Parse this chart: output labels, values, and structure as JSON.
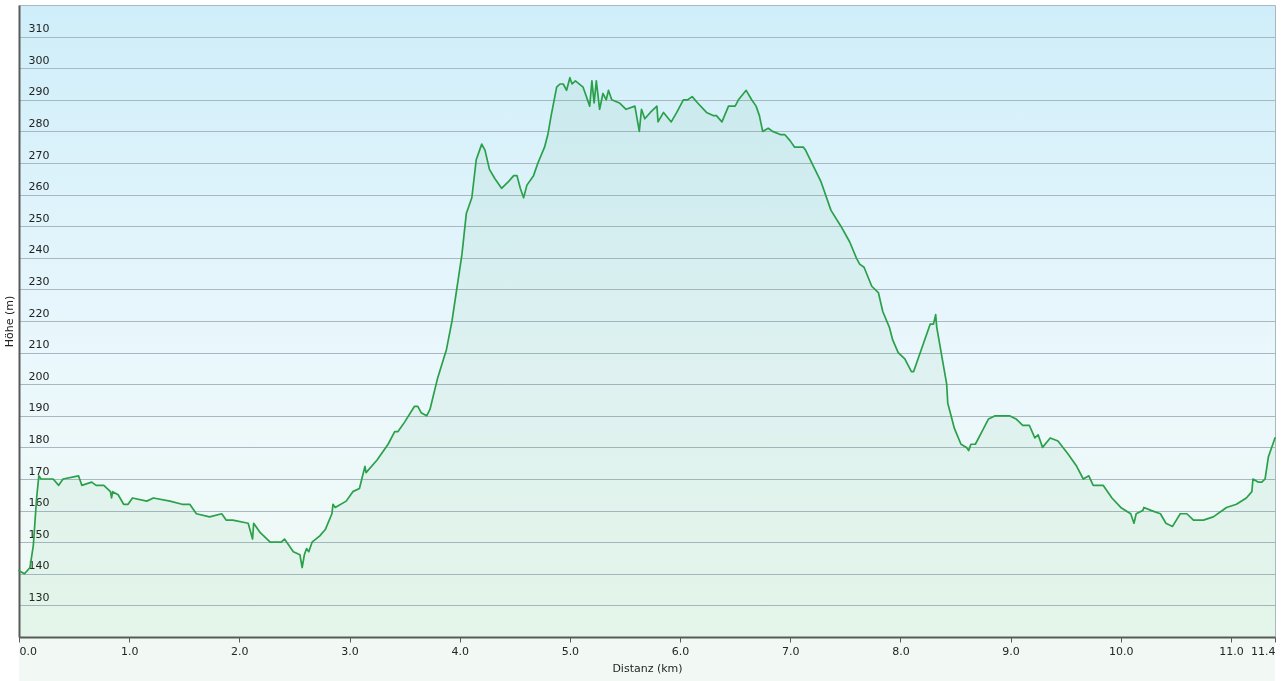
{
  "chart_data": {
    "type": "area",
    "xlabel": "Distanz (km)",
    "ylabel": "Höhe (m)",
    "color": "#2aa04a",
    "grid": "y",
    "xlim": [
      0,
      11.4
    ],
    "xticks": [
      {
        "value": 0,
        "label": "0.0"
      },
      {
        "value": 1,
        "label": "1.0"
      },
      {
        "value": 2,
        "label": "2.0"
      },
      {
        "value": 3,
        "label": "3.0"
      },
      {
        "value": 4,
        "label": "4.0"
      },
      {
        "value": 5,
        "label": "5.0"
      },
      {
        "value": 6,
        "label": "6.0"
      },
      {
        "value": 7,
        "label": "7.0"
      },
      {
        "value": 8,
        "label": "8.0"
      },
      {
        "value": 9,
        "label": "9.0"
      },
      {
        "value": 10,
        "label": "10.0"
      },
      {
        "value": 11,
        "label": "11.0"
      },
      {
        "value": 11.4,
        "label": "11.4"
      }
    ],
    "ylim": [
      120,
      320
    ],
    "yticks": [
      130,
      140,
      150,
      160,
      170,
      180,
      190,
      200,
      210,
      220,
      230,
      240,
      250,
      260,
      270,
      280,
      290,
      300,
      310
    ],
    "x": [
      0.0,
      0.05,
      0.1,
      0.13,
      0.16,
      0.18,
      0.2,
      0.31,
      0.36,
      0.4,
      0.54,
      0.57,
      0.66,
      0.7,
      0.77,
      0.83,
      0.84,
      0.85,
      0.9,
      0.95,
      0.99,
      1.03,
      1.16,
      1.22,
      1.37,
      1.48,
      1.55,
      1.61,
      1.73,
      1.84,
      1.88,
      1.94,
      2.08,
      2.12,
      2.13,
      2.19,
      2.28,
      2.38,
      2.41,
      2.49,
      2.55,
      2.57,
      2.59,
      2.61,
      2.63,
      2.66,
      2.73,
      2.78,
      2.84,
      2.85,
      2.87,
      2.97,
      3.03,
      3.09,
      3.14,
      3.15,
      3.25,
      3.35,
      3.41,
      3.44,
      3.5,
      3.59,
      3.62,
      3.65,
      3.7,
      3.73,
      3.8,
      3.88,
      3.93,
      4.02,
      4.06,
      4.11,
      4.15,
      4.18,
      4.2,
      4.23,
      4.27,
      4.32,
      4.38,
      4.44,
      4.49,
      4.52,
      4.55,
      4.58,
      4.61,
      4.67,
      4.71,
      4.77,
      4.8,
      4.83,
      4.88,
      4.91,
      4.94,
      4.97,
      5.0,
      5.02,
      5.05,
      5.12,
      5.18,
      5.2,
      5.22,
      5.24,
      5.27,
      5.3,
      5.33,
      5.35,
      5.38,
      5.45,
      5.51,
      5.59,
      5.63,
      5.65,
      5.68,
      5.73,
      5.79,
      5.8,
      5.85,
      5.92,
      5.97,
      6.03,
      6.07,
      6.11,
      6.16,
      6.24,
      6.3,
      6.33,
      6.38,
      6.44,
      6.5,
      6.53,
      6.6,
      6.65,
      6.69,
      6.72,
      6.75,
      6.8,
      6.84,
      6.91,
      6.95,
      7.0,
      7.04,
      7.12,
      7.14,
      7.21,
      7.28,
      7.37,
      7.46,
      7.54,
      7.6,
      7.63,
      7.67,
      7.74,
      7.8,
      7.84,
      7.9,
      7.93,
      7.98,
      8.04,
      8.1,
      8.12,
      8.22,
      8.27,
      8.3,
      8.32,
      8.33,
      8.35,
      8.38,
      8.42,
      8.43,
      8.46,
      8.49,
      8.55,
      8.6,
      8.62,
      8.64,
      8.68,
      8.74,
      8.8,
      8.86,
      8.93,
      8.99,
      9.05,
      9.11,
      9.17,
      9.22,
      9.25,
      9.29,
      9.36,
      9.43,
      9.52,
      9.6,
      9.66,
      9.71,
      9.75,
      9.84,
      9.92,
      10.0,
      10.09,
      10.12,
      10.14,
      10.2,
      10.21,
      10.28,
      10.36,
      10.41,
      10.47,
      10.54,
      10.6,
      10.66,
      10.75,
      10.84,
      10.96,
      11.05,
      11.14,
      11.19,
      11.2,
      11.25,
      11.28,
      11.31,
      11.34,
      11.4
    ],
    "values": [
      141,
      140,
      142,
      149,
      164,
      171,
      170,
      170,
      168,
      170,
      171,
      168,
      169,
      168,
      168,
      166,
      164,
      166,
      165,
      162,
      162,
      164,
      163,
      164,
      163,
      162,
      162,
      159,
      158,
      159,
      157,
      157,
      156,
      151,
      156,
      153,
      150,
      150,
      151,
      147,
      146,
      142,
      146,
      148,
      147,
      150,
      152,
      154,
      159,
      162,
      161,
      163,
      166,
      167,
      174,
      172,
      176,
      181,
      185,
      185,
      188,
      193,
      193,
      191,
      190,
      192,
      202,
      211,
      220,
      241,
      254,
      259,
      271,
      274,
      276,
      274,
      268,
      265,
      262,
      264,
      266,
      266,
      262,
      259,
      263,
      266,
      270,
      275,
      279,
      285,
      294,
      295,
      295,
      293,
      297,
      295,
      296,
      294,
      288,
      296,
      289,
      296,
      287,
      292,
      290,
      293,
      290,
      289,
      287,
      288,
      280,
      287,
      284,
      286,
      288,
      283,
      286,
      283,
      286,
      290,
      290,
      291,
      289,
      286,
      285,
      285,
      283,
      288,
      288,
      290,
      293,
      290,
      288,
      285,
      280,
      281,
      280,
      279,
      279,
      277,
      275,
      275,
      274,
      269,
      264,
      255,
      250,
      245,
      240,
      238,
      237,
      231,
      229,
      223,
      218,
      214,
      210,
      208,
      204,
      204,
      214,
      219,
      219,
      222,
      218,
      214,
      208,
      200,
      194,
      190,
      186,
      181,
      180,
      179,
      181,
      181,
      185,
      189,
      190,
      190,
      190,
      189,
      187,
      187,
      183,
      184,
      180,
      183,
      182,
      178,
      174,
      170,
      171,
      168,
      168,
      164,
      161,
      159,
      156,
      159,
      160,
      161,
      160,
      159,
      156,
      155,
      159,
      159,
      157,
      157,
      158,
      161,
      162,
      164,
      166,
      170,
      169,
      169,
      170,
      177,
      183
    ]
  }
}
